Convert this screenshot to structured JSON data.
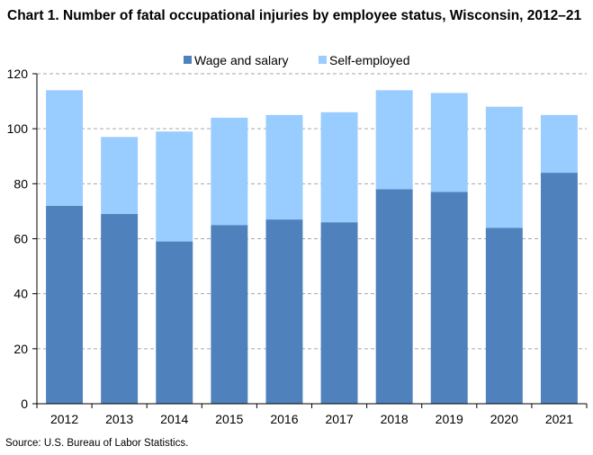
{
  "title": "Chart 1. Number of fatal occupational injuries by employee status, Wisconsin, 2012–21",
  "source": "Source: U.S. Bureau of Labor Statistics.",
  "colors": {
    "wage": "#4F81BD",
    "self": "#99CCFF",
    "grid": "#a6a6a6",
    "axis": "#000000"
  },
  "chart_data": {
    "type": "bar",
    "stacked": true,
    "title": "Chart 1. Number of fatal occupational injuries by employee status, Wisconsin, 2012–21",
    "xlabel": "",
    "ylabel": "",
    "categories": [
      "2012",
      "2013",
      "2014",
      "2015",
      "2016",
      "2017",
      "2018",
      "2019",
      "2020",
      "2021"
    ],
    "series": [
      {
        "name": "Wage and salary",
        "values": [
          72,
          69,
          59,
          65,
          67,
          66,
          78,
          77,
          64,
          84
        ]
      },
      {
        "name": "Self-employed",
        "values": [
          42,
          28,
          40,
          39,
          38,
          40,
          36,
          36,
          44,
          21
        ]
      }
    ],
    "ylim": [
      0,
      120
    ],
    "yticks": [
      "0",
      "20",
      "40",
      "60",
      "80",
      "100",
      "120"
    ],
    "grid": true,
    "legend_position": "top-center"
  }
}
